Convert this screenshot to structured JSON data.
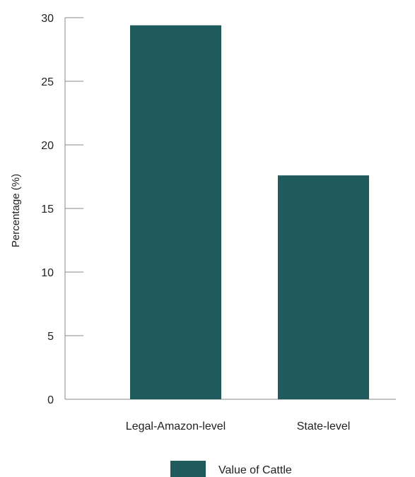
{
  "chart_data": {
    "type": "bar",
    "categories": [
      "Legal-Amazon-level",
      "State-level"
    ],
    "series": [
      {
        "name": "Value of Cattle",
        "values": [
          29.4,
          17.6
        ],
        "color": "#1f5a5d"
      }
    ],
    "title": "",
    "xlabel": "",
    "ylabel": "Percentage (%)",
    "ylim": [
      0,
      30
    ],
    "yticks": [
      0,
      5,
      10,
      15,
      20,
      25,
      30
    ],
    "grid": false,
    "legend_position": "bottom"
  }
}
